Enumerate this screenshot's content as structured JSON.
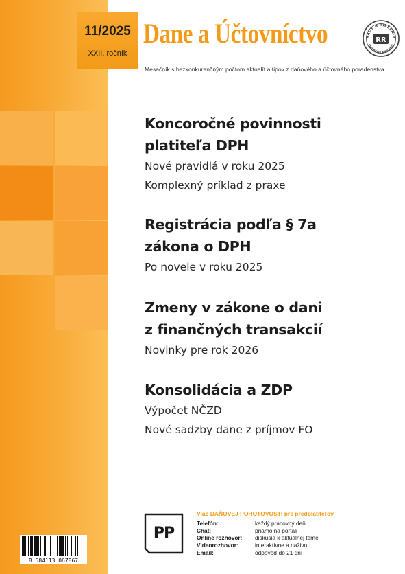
{
  "magazine": {
    "title": "Dane a Účtovníctvo",
    "subtitle": "Mesačník s bezkonkurenčným počtom aktualít a tipov z daňového a účtovného poradenstva",
    "issue": "11/2025",
    "volume": "XXII. ročník",
    "brand_color": "#f39a18",
    "seal": {
      "text_top": "RADY A RIEŠENIA",
      "text_bottom": "OVERENÉ PRAXOU",
      "monogram": "RR"
    }
  },
  "articles": [
    {
      "title_lines": [
        "Koncoročné povinnosti",
        "platiteľa DPH"
      ],
      "subtitles": [
        "Nové pravidlá v roku 2025",
        "Komplexný príklad z praxe"
      ]
    },
    {
      "title_lines": [
        "Registrácia podľa § 7a",
        "zákona o DPH"
      ],
      "subtitles": [
        "Po novele v roku 2025"
      ]
    },
    {
      "title_lines": [
        "Zmeny v zákone o dani",
        "z finančných transakcií"
      ],
      "subtitles": [
        "Novinky pre rok 2026"
      ]
    },
    {
      "title_lines": [
        "Konsolidácia a ZDP"
      ],
      "subtitles": [
        "Výpočet NČZD",
        "Nové sadzby dane z príjmov FO"
      ]
    }
  ],
  "footer": {
    "barcode_number": "8 584113 067867",
    "logo_text": "PP",
    "contact_heading": "Viac DAŇOVEJ POHOTOVOSTI pre predplatiteľov",
    "contacts": [
      {
        "label": "Telefón:",
        "value": "každý pracovný deň"
      },
      {
        "label": "Chat:",
        "value": "priamo na portáli"
      },
      {
        "label": "Online rozhovor:",
        "value": "diskusia k aktuálnej téme"
      },
      {
        "label": "Videorozhovor:",
        "value": "interaktívne a naživo"
      },
      {
        "label": "Email:",
        "value": "odpoveď do 21 dní"
      }
    ]
  }
}
